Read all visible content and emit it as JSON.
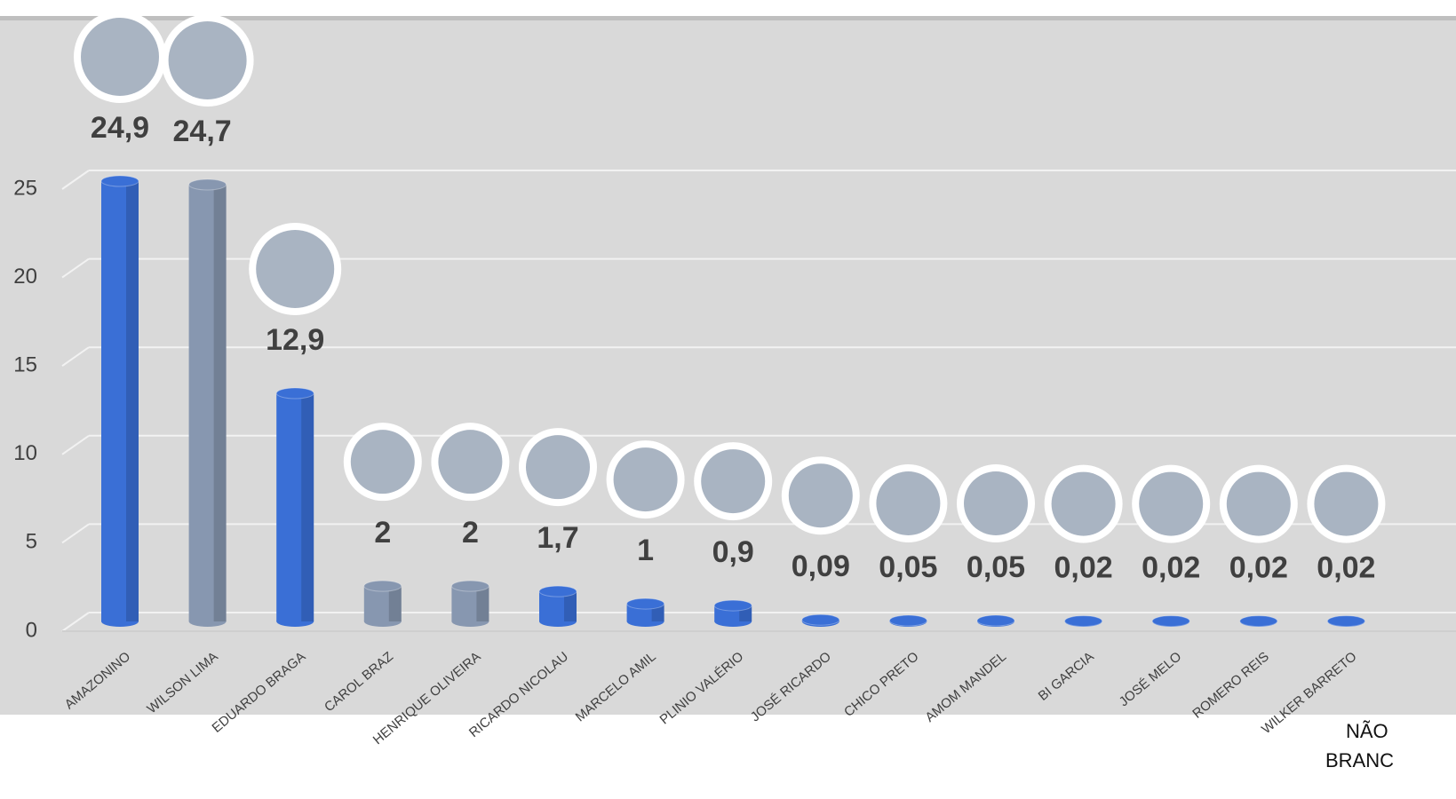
{
  "chart_data": {
    "type": "bar",
    "categories": [
      "AMAZONINO",
      "WILSON LIMA",
      "EDUARDO BRAGA",
      "CAROL BRAZ",
      "HENRIQUE OLIVEIRA",
      "RICARDO NICOLAU",
      "MARCELO AMIL",
      "PLINIO VALÉRIO",
      "JOSÉ RICARDO",
      "CHICO PRETO",
      "AMOM MANDEL",
      "BI GARCIA",
      "JOSÉ MELO",
      "ROMERO REIS",
      "WILKER BARRETO"
    ],
    "values": [
      24.9,
      24.7,
      12.9,
      2,
      2,
      1.7,
      1,
      0.9,
      0.09,
      0.05,
      0.05,
      0.02,
      0.02,
      0.02,
      0.02
    ],
    "value_labels": [
      "24,9",
      "24,7",
      "12,9",
      "2",
      "2",
      "1,7",
      "1",
      "0,9",
      "0,09",
      "0,05",
      "0,05",
      "0,02",
      "0,02",
      "0,02",
      "0,02"
    ],
    "colors": [
      "#3a6fd6",
      "#8797b0",
      "#3a6fd6",
      "#8797b0",
      "#8797b0",
      "#3a6fd6",
      "#3a6fd6",
      "#3a6fd6",
      "#3a6fd6",
      "#3a6fd6",
      "#3a6fd6",
      "#3a6fd6",
      "#3a6fd6",
      "#3a6fd6",
      "#3a6fd6"
    ],
    "ylim": [
      0,
      25
    ],
    "yticks": [
      0,
      5,
      10,
      15,
      20,
      25
    ],
    "grid": true,
    "annotations": [
      "NÃO",
      "BRANC"
    ]
  }
}
